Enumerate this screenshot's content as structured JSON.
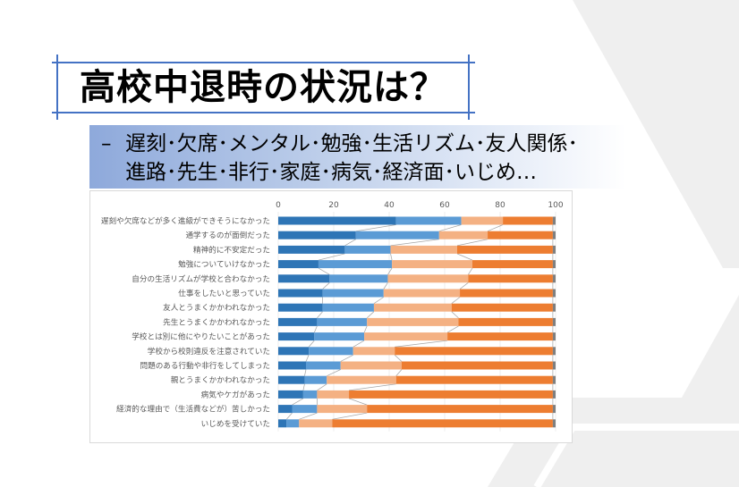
{
  "slide": {
    "title": "高校中退時の状況は？",
    "bullet": "–",
    "subtitle_lines": [
      "遅刻･欠席･メンタル･勉強･生活リズム･友人関係･",
      "進路･先生･非行･家庭･病気･経済面･いじめ…"
    ]
  },
  "theme": {
    "accent": "#4472c4",
    "background_shape": "#efefef"
  },
  "chart_data": {
    "type": "bar",
    "orientation": "horizontal",
    "stacked": "percent",
    "xlim": [
      0,
      100
    ],
    "xticks": [
      0,
      20,
      40,
      60,
      80,
      100
    ],
    "grid": true,
    "legend": "none",
    "series_lines": true,
    "categories": [
      "遅刻や欠席などが多く進級ができそうになかった",
      "通学するのが面倒だった",
      "精神的に不安定だった",
      "勉強についていけなかった",
      "自分の生活リズムが学校と合わなかった",
      "仕事をしたいと思っていた",
      "友人とうまくかかわれなかった",
      "先生とうまくかかわれなかった",
      "学校とは別に他にやりたいことがあった",
      "学校から校則違反を注意されていた",
      "問題のある行動や非行をしてしまった",
      "親とうまくかかわれなかった",
      "病気やケガがあった",
      "経済的な理由で（生活費などが）苦しかった",
      "いじめを受けていた"
    ],
    "series": [
      {
        "color": "#2e75b6",
        "values": [
          42.5,
          28,
          24,
          14.5,
          18.5,
          16,
          16,
          14,
          13,
          11,
          10,
          9.5,
          9,
          5,
          3
        ]
      },
      {
        "color": "#5b9bd5",
        "values": [
          23.5,
          30,
          16.5,
          26.5,
          21,
          22,
          18.5,
          18,
          18,
          16,
          12.5,
          8,
          5,
          9,
          4.5
        ]
      },
      {
        "color": "#f4b183",
        "values": [
          15,
          17.5,
          24,
          29,
          29,
          27.5,
          28,
          33,
          30,
          15,
          22,
          25,
          11.5,
          18,
          12
        ]
      },
      {
        "color": "#ed7d31",
        "values": [
          18,
          23.5,
          34.5,
          29,
          30.5,
          33.5,
          36.5,
          34,
          38,
          57,
          54.5,
          56.5,
          73.5,
          67,
          79.5
        ]
      },
      {
        "color": "#7f7f7f",
        "values": [
          1,
          1,
          1,
          1,
          1,
          1,
          1,
          1,
          1,
          1,
          1,
          1,
          1,
          1,
          1
        ]
      }
    ]
  }
}
